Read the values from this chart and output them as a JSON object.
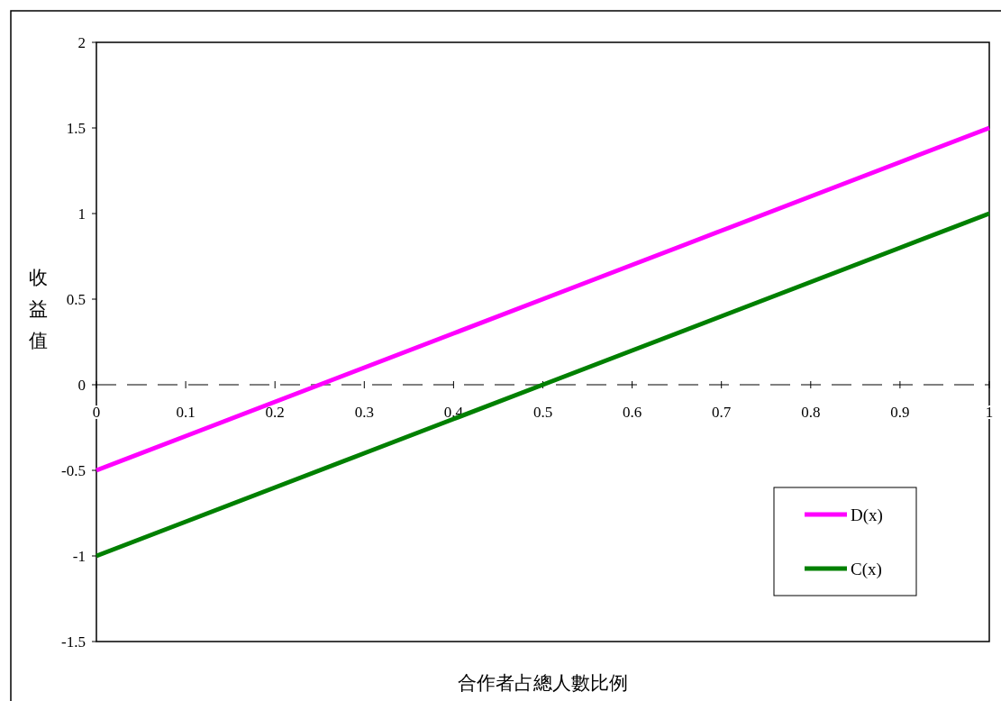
{
  "chart_data": {
    "type": "line",
    "xlabel": "合作者占總人數比例",
    "ylabel": "收益值",
    "x": [
      0,
      0.1,
      0.2,
      0.3,
      0.4,
      0.5,
      0.6,
      0.7,
      0.8,
      0.9,
      1
    ],
    "series": [
      {
        "name": "D(x)",
        "color": "#ff00ff",
        "values": [
          -0.5,
          -0.3,
          -0.1,
          0.1,
          0.3,
          0.5,
          0.7,
          0.9,
          1.1,
          1.3,
          1.5
        ]
      },
      {
        "name": "C(x)",
        "color": "#008000",
        "values": [
          -1,
          -0.8,
          -0.6,
          -0.4,
          -0.2,
          0,
          0.2,
          0.4,
          0.6,
          0.8,
          1
        ]
      }
    ],
    "xlim": [
      0,
      1
    ],
    "xticks": [
      0,
      0.1,
      0.2,
      0.3,
      0.4,
      0.5,
      0.6,
      0.7,
      0.8,
      0.9,
      1
    ],
    "ylim": [
      -1.5,
      2
    ],
    "yticks": [
      -1.5,
      -1,
      -0.5,
      0,
      0.5,
      1,
      1.5,
      2
    ],
    "ref_lines": [
      {
        "axis": "y",
        "value": 0,
        "line_style": "dashed",
        "color": "#000000"
      }
    ],
    "grid": false,
    "legend": "bottom right",
    "marker": "none",
    "line_style": "solid"
  }
}
